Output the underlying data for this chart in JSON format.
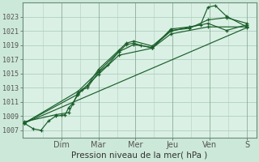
{
  "bg_color": "#cce8d8",
  "plot_bg_color": "#daf0e4",
  "grid_color": "#b0cfc0",
  "line_color": "#1a5e2a",
  "xlabel": "Pression niveau de la mer( hPa )",
  "ylim": [
    1006.0,
    1025.0
  ],
  "yticks": [
    1007,
    1009,
    1011,
    1013,
    1015,
    1017,
    1019,
    1021,
    1023
  ],
  "day_labels": [
    "Dim",
    "Mar",
    "Mer",
    "Jeu",
    "Ven",
    "S"
  ],
  "day_positions": [
    1.0,
    2.0,
    3.0,
    4.0,
    5.0,
    6.0
  ],
  "xlim": [
    -0.05,
    6.25
  ],
  "lines": [
    [
      0.0,
      1008.0,
      0.25,
      1007.2,
      0.45,
      1007.0,
      0.65,
      1008.3,
      0.85,
      1009.0,
      1.0,
      1009.1,
      1.1,
      1009.2,
      1.2,
      1010.2,
      1.3,
      1010.8,
      1.45,
      1012.0,
      1.55,
      1012.7,
      1.7,
      1013.0,
      2.0,
      1015.2,
      2.25,
      1016.2,
      2.55,
      1018.1,
      2.75,
      1019.1,
      2.95,
      1019.3,
      3.15,
      1019.0,
      3.45,
      1018.6,
      3.95,
      1021.3,
      4.45,
      1021.6,
      4.75,
      1021.9,
      4.95,
      1024.4,
      5.15,
      1024.6,
      5.45,
      1023.1,
      6.0,
      1021.6
    ],
    [
      0.0,
      1008.2,
      0.85,
      1009.2,
      1.2,
      1009.5,
      1.45,
      1012.3,
      1.7,
      1013.3,
      2.0,
      1015.6,
      2.55,
      1018.3,
      2.75,
      1019.3,
      2.95,
      1019.6,
      3.45,
      1018.9,
      3.95,
      1021.1,
      4.45,
      1021.4,
      4.95,
      1022.6,
      5.45,
      1022.9,
      6.0,
      1022.1
    ],
    [
      0.0,
      1008.0,
      1.45,
      1012.5,
      2.0,
      1015.3,
      2.55,
      1018.1,
      2.95,
      1019.1,
      3.45,
      1018.7,
      3.95,
      1021.0,
      4.95,
      1022.1,
      5.45,
      1021.1,
      6.0,
      1021.9
    ],
    [
      0.0,
      1008.0,
      1.45,
      1012.1,
      2.0,
      1014.9,
      2.55,
      1017.6,
      3.45,
      1018.6,
      3.95,
      1020.6,
      4.95,
      1021.6,
      6.0,
      1021.6
    ],
    [
      0.0,
      1008.0,
      6.0,
      1021.5
    ]
  ],
  "xlabel_fontsize": 7.5,
  "tick_fontsize": 6.0,
  "xtick_fontsize": 7.0
}
